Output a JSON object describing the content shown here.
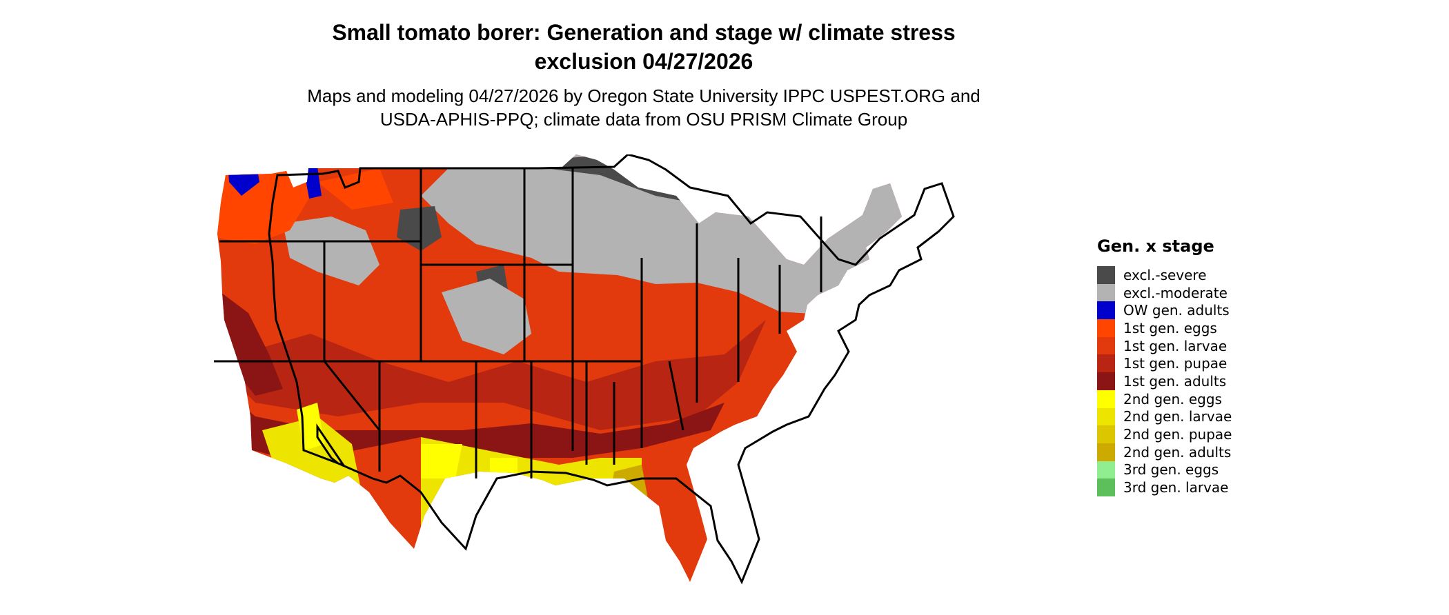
{
  "title": {
    "line1": "Small tomato borer: Generation and stage w/ climate stress",
    "line2": "exclusion 04/27/2026"
  },
  "subtitle": {
    "line1": "Maps and modeling 04/27/2026 by Oregon State University IPPC USPEST.ORG and",
    "line2": "USDA-APHIS-PPQ; climate data from OSU PRISM Climate Group"
  },
  "legend": {
    "title": "Gen. x stage",
    "items": [
      {
        "label": "excl.-severe",
        "color": "#4a4a4a"
      },
      {
        "label": "excl.-moderate",
        "color": "#b3b3b3"
      },
      {
        "label": "OW gen. adults",
        "color": "#0000cc"
      },
      {
        "label": "1st gen. eggs",
        "color": "#ff4500"
      },
      {
        "label": "1st gen. larvae",
        "color": "#e23a0c"
      },
      {
        "label": "1st gen. pupae",
        "color": "#b82513"
      },
      {
        "label": "1st gen. adults",
        "color": "#8b1414"
      },
      {
        "label": "2nd gen. eggs",
        "color": "#ffff00"
      },
      {
        "label": "2nd gen. larvae",
        "color": "#ede400"
      },
      {
        "label": "2nd gen. pupae",
        "color": "#dcc600"
      },
      {
        "label": "2nd gen. adults",
        "color": "#ccaa00"
      },
      {
        "label": "3rd gen. eggs",
        "color": "#90ee90"
      },
      {
        "label": "3rd gen. larvae",
        "color": "#5cbf5c"
      }
    ]
  }
}
